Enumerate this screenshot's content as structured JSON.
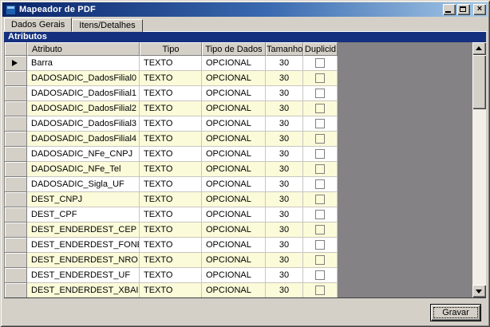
{
  "window": {
    "title": "Mapeador de PDF"
  },
  "icons": {
    "app": "form-app-icon",
    "minimize": "minimize-icon",
    "maximize": "maximize-icon",
    "close": "close-icon",
    "scroll_up": "chevron-up-icon",
    "scroll_down": "chevron-down-icon",
    "current_row": "current-row-arrow-icon"
  },
  "tabs": [
    {
      "label": "Dados Gerais",
      "active": true
    },
    {
      "label": "Itens/Detalhes",
      "active": false
    }
  ],
  "panel": {
    "caption": "Atributos"
  },
  "grid": {
    "columns": [
      "Atributo",
      "Tipo",
      "Tipo de Dados",
      "Tamanho",
      "Duplicid"
    ],
    "selected_row_index": 0,
    "rows": [
      {
        "atributo": "Barra",
        "tipo": "TEXTO",
        "tipo_de_dados": "OPCIONAL",
        "tamanho": "30",
        "duplicid": false
      },
      {
        "atributo": "DADOSADIC_DadosFilial0",
        "tipo": "TEXTO",
        "tipo_de_dados": "OPCIONAL",
        "tamanho": "30",
        "duplicid": false
      },
      {
        "atributo": "DADOSADIC_DadosFilial1",
        "tipo": "TEXTO",
        "tipo_de_dados": "OPCIONAL",
        "tamanho": "30",
        "duplicid": false
      },
      {
        "atributo": "DADOSADIC_DadosFilial2",
        "tipo": "TEXTO",
        "tipo_de_dados": "OPCIONAL",
        "tamanho": "30",
        "duplicid": false
      },
      {
        "atributo": "DADOSADIC_DadosFilial3",
        "tipo": "TEXTO",
        "tipo_de_dados": "OPCIONAL",
        "tamanho": "30",
        "duplicid": false
      },
      {
        "atributo": "DADOSADIC_DadosFilial4",
        "tipo": "TEXTO",
        "tipo_de_dados": "OPCIONAL",
        "tamanho": "30",
        "duplicid": false
      },
      {
        "atributo": "DADOSADIC_NFe_CNPJ",
        "tipo": "TEXTO",
        "tipo_de_dados": "OPCIONAL",
        "tamanho": "30",
        "duplicid": false
      },
      {
        "atributo": "DADOSADIC_NFe_Tel",
        "tipo": "TEXTO",
        "tipo_de_dados": "OPCIONAL",
        "tamanho": "30",
        "duplicid": false
      },
      {
        "atributo": "DADOSADIC_Sigla_UF",
        "tipo": "TEXTO",
        "tipo_de_dados": "OPCIONAL",
        "tamanho": "30",
        "duplicid": false
      },
      {
        "atributo": "DEST_CNPJ",
        "tipo": "TEXTO",
        "tipo_de_dados": "OPCIONAL",
        "tamanho": "30",
        "duplicid": false
      },
      {
        "atributo": "DEST_CPF",
        "tipo": "TEXTO",
        "tipo_de_dados": "OPCIONAL",
        "tamanho": "30",
        "duplicid": false
      },
      {
        "atributo": "DEST_ENDERDEST_CEP",
        "tipo": "TEXTO",
        "tipo_de_dados": "OPCIONAL",
        "tamanho": "30",
        "duplicid": false
      },
      {
        "atributo": "DEST_ENDERDEST_FONE",
        "tipo": "TEXTO",
        "tipo_de_dados": "OPCIONAL",
        "tamanho": "30",
        "duplicid": false
      },
      {
        "atributo": "DEST_ENDERDEST_NRO",
        "tipo": "TEXTO",
        "tipo_de_dados": "OPCIONAL",
        "tamanho": "30",
        "duplicid": false
      },
      {
        "atributo": "DEST_ENDERDEST_UF",
        "tipo": "TEXTO",
        "tipo_de_dados": "OPCIONAL",
        "tamanho": "30",
        "duplicid": false
      },
      {
        "atributo": "DEST_ENDERDEST_XBAIRRO",
        "tipo": "TEXTO",
        "tipo_de_dados": "OPCIONAL",
        "tamanho": "30",
        "duplicid": false
      }
    ]
  },
  "footer": {
    "save_label": "Gravar"
  },
  "colors": {
    "face": "#d4d0c8",
    "titlebar_left": "#0a246a",
    "titlebar_right": "#a6cae8",
    "caption_bg": "#14307e",
    "row_alt": "#fbfbd9",
    "grid_filler": "#848284"
  }
}
